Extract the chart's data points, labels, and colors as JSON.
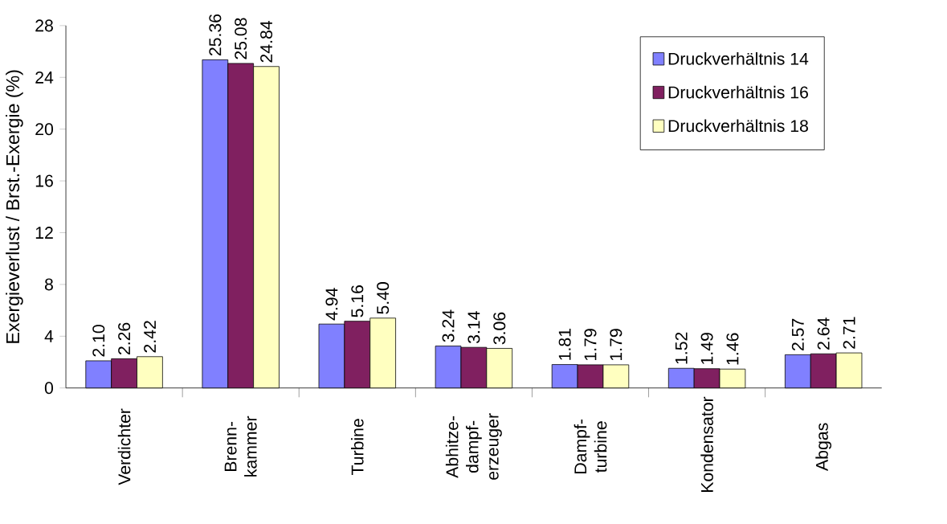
{
  "chart_data": {
    "type": "bar",
    "ylabel": "Exergieverlust / Brst.-Exergie (%)",
    "categories": [
      "Verdichter",
      "Brenn- kammer",
      "Turbine",
      "Abhitze- dampf- erzeuger",
      "Dampf- turbine",
      "Kondensator",
      "Abgas"
    ],
    "series": [
      {
        "name": "Druckverhältnis 14",
        "color": "#8080ff",
        "values": [
          2.1,
          25.36,
          4.94,
          3.24,
          1.81,
          1.52,
          2.57
        ],
        "value_labels": [
          "2.10",
          "25.36",
          "4.94",
          "3.24",
          "1.81",
          "1.52",
          "2.57"
        ]
      },
      {
        "name": "Druckverhältnis 16",
        "color": "#802060",
        "values": [
          2.26,
          25.08,
          5.16,
          3.14,
          1.79,
          1.49,
          2.64
        ],
        "value_labels": [
          "2.26",
          "25.08",
          "5.16",
          "3.14",
          "1.79",
          "1.49",
          "2.64"
        ]
      },
      {
        "name": "Druckverhältnis 18",
        "color": "#ffffc0",
        "values": [
          2.42,
          24.84,
          5.4,
          3.06,
          1.79,
          1.46,
          2.71
        ],
        "value_labels": [
          "2.42",
          "24.84",
          "5.40",
          "3.06",
          "1.79",
          "1.46",
          "2.71"
        ]
      }
    ],
    "ylim": [
      0,
      28
    ],
    "yticks": [
      0,
      4,
      8,
      12,
      16,
      20,
      24,
      28
    ],
    "grid": false,
    "legend": "top right"
  }
}
